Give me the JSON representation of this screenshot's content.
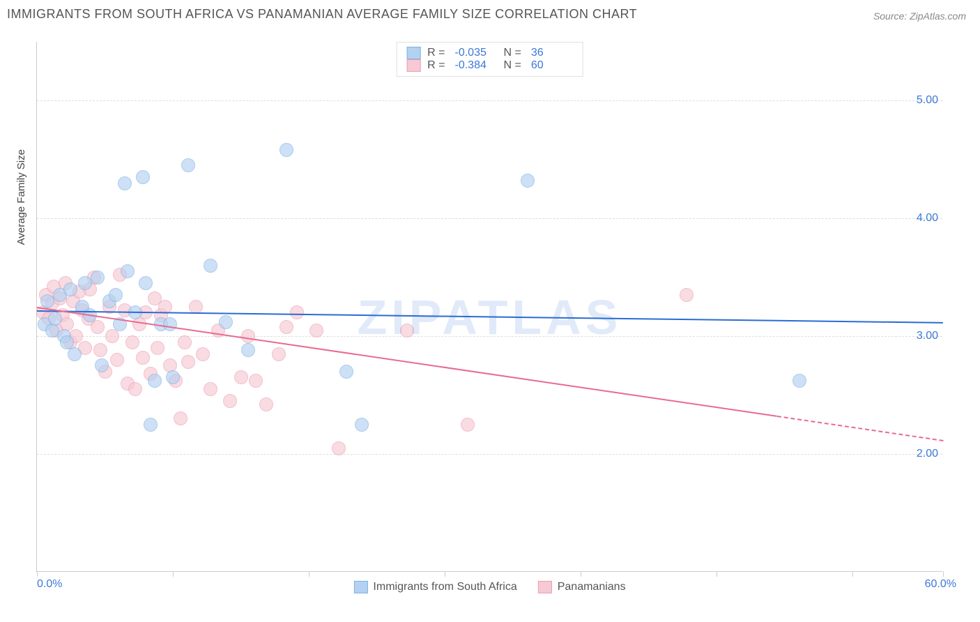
{
  "title": "IMMIGRANTS FROM SOUTH AFRICA VS PANAMANIAN AVERAGE FAMILY SIZE CORRELATION CHART",
  "source": "Source: ZipAtlas.com",
  "watermark": "ZIPATLAS",
  "chart": {
    "type": "scatter",
    "background_color": "#ffffff",
    "grid_color": "#dddddd",
    "axis_color": "#cccccc",
    "xlim": [
      0,
      60
    ],
    "ylim": [
      1.0,
      5.5
    ],
    "xticks_pct": [
      0,
      15,
      30,
      45,
      60,
      75,
      90,
      100
    ],
    "xtick_labels": {
      "start": "0.0%",
      "end": "60.0%"
    },
    "ytick_positions": [
      2.0,
      3.0,
      4.0,
      5.0
    ],
    "ytick_labels": [
      "2.00",
      "3.00",
      "4.00",
      "5.00"
    ],
    "yaxis_label": "Average Family Size",
    "tick_color": "#3b78d8",
    "series": {
      "sa": {
        "label": "Immigrants from South Africa",
        "fill": "#b3d1f0",
        "stroke": "#7eb1e6",
        "line_color": "#2a6bd4",
        "R": "-0.035",
        "N": "36",
        "trend": {
          "x1": 0,
          "y1": 3.22,
          "x2": 60,
          "y2": 3.12,
          "solid_to_x": 60
        },
        "points": [
          [
            0.5,
            3.1
          ],
          [
            0.7,
            3.3
          ],
          [
            1.0,
            3.05
          ],
          [
            1.2,
            3.15
          ],
          [
            1.5,
            3.35
          ],
          [
            1.8,
            3.0
          ],
          [
            2.0,
            2.95
          ],
          [
            2.2,
            3.4
          ],
          [
            2.5,
            2.85
          ],
          [
            3.0,
            3.25
          ],
          [
            3.2,
            3.45
          ],
          [
            3.5,
            3.18
          ],
          [
            4.0,
            3.5
          ],
          [
            4.3,
            2.75
          ],
          [
            4.8,
            3.3
          ],
          [
            5.2,
            3.35
          ],
          [
            5.5,
            3.1
          ],
          [
            6.0,
            3.55
          ],
          [
            6.5,
            3.2
          ],
          [
            7.0,
            4.35
          ],
          [
            7.5,
            2.25
          ],
          [
            7.8,
            2.62
          ],
          [
            8.2,
            3.1
          ],
          [
            8.8,
            3.1
          ],
          [
            9.0,
            2.65
          ],
          [
            10.0,
            4.45
          ],
          [
            11.5,
            3.6
          ],
          [
            12.5,
            3.12
          ],
          [
            14.0,
            2.88
          ],
          [
            16.5,
            4.58
          ],
          [
            20.5,
            2.7
          ],
          [
            21.5,
            2.25
          ],
          [
            32.5,
            4.32
          ],
          [
            50.5,
            2.62
          ],
          [
            7.2,
            3.45
          ],
          [
            5.8,
            4.3
          ]
        ]
      },
      "pa": {
        "label": "Panamanians",
        "fill": "#f6c9d4",
        "stroke": "#ee9eb3",
        "line_color": "#e86a8e",
        "R": "-0.384",
        "N": "60",
        "trend": {
          "x1": 0,
          "y1": 3.25,
          "x2": 60,
          "y2": 2.12,
          "solid_to_x": 49
        },
        "points": [
          [
            0.4,
            3.2
          ],
          [
            0.6,
            3.35
          ],
          [
            0.8,
            3.15
          ],
          [
            1.0,
            3.28
          ],
          [
            1.1,
            3.42
          ],
          [
            1.3,
            3.05
          ],
          [
            1.5,
            3.32
          ],
          [
            1.7,
            3.18
          ],
          [
            1.9,
            3.45
          ],
          [
            2.0,
            3.1
          ],
          [
            2.2,
            2.95
          ],
          [
            2.4,
            3.3
          ],
          [
            2.6,
            3.0
          ],
          [
            2.8,
            3.38
          ],
          [
            3.0,
            3.22
          ],
          [
            3.2,
            2.9
          ],
          [
            3.4,
            3.15
          ],
          [
            3.5,
            3.4
          ],
          [
            3.8,
            3.5
          ],
          [
            4.0,
            3.08
          ],
          [
            4.2,
            2.88
          ],
          [
            4.5,
            2.7
          ],
          [
            4.8,
            3.25
          ],
          [
            5.0,
            3.0
          ],
          [
            5.3,
            2.8
          ],
          [
            5.5,
            3.52
          ],
          [
            5.8,
            3.22
          ],
          [
            6.0,
            2.6
          ],
          [
            6.3,
            2.95
          ],
          [
            6.5,
            2.55
          ],
          [
            7.0,
            2.82
          ],
          [
            7.2,
            3.2
          ],
          [
            7.5,
            2.68
          ],
          [
            8.0,
            2.9
          ],
          [
            8.2,
            3.18
          ],
          [
            8.5,
            3.25
          ],
          [
            8.8,
            2.75
          ],
          [
            9.2,
            2.62
          ],
          [
            9.5,
            2.3
          ],
          [
            9.8,
            2.95
          ],
          [
            10.0,
            2.78
          ],
          [
            10.5,
            3.25
          ],
          [
            11.0,
            2.85
          ],
          [
            11.5,
            2.55
          ],
          [
            12.0,
            3.05
          ],
          [
            12.8,
            2.45
          ],
          [
            13.5,
            2.65
          ],
          [
            14.0,
            3.0
          ],
          [
            14.5,
            2.62
          ],
          [
            15.2,
            2.42
          ],
          [
            16.0,
            2.85
          ],
          [
            16.5,
            3.08
          ],
          [
            17.2,
            3.2
          ],
          [
            18.5,
            3.05
          ],
          [
            20.0,
            2.05
          ],
          [
            24.5,
            3.05
          ],
          [
            28.5,
            2.25
          ],
          [
            43.0,
            3.35
          ],
          [
            6.8,
            3.1
          ],
          [
            7.8,
            3.32
          ]
        ]
      }
    },
    "legend_top_labels": {
      "R": "R =",
      "N": "N ="
    }
  }
}
